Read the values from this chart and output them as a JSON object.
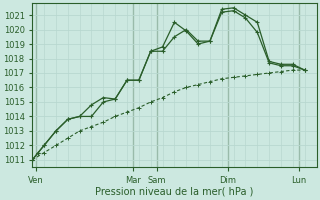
{
  "xlabel": "Pression niveau de la mer( hPa )",
  "bg_color": "#cce8e0",
  "grid_color_minor": "#b8d8d0",
  "grid_color_major_x": "#99bbaa",
  "line_color": "#2a5e2a",
  "ylim": [
    1010.5,
    1021.8
  ],
  "yticks": [
    1011,
    1012,
    1013,
    1014,
    1015,
    1016,
    1017,
    1018,
    1019,
    1020,
    1021
  ],
  "xlim": [
    0,
    24
  ],
  "day_labels": [
    "Ven",
    "Mar",
    "Sam",
    "Dim",
    "Lun"
  ],
  "day_positions": [
    0.3,
    8.5,
    10.5,
    16.5,
    22.5
  ],
  "major_vlines": [
    0.3,
    8.5,
    10.5,
    16.5,
    22.5
  ],
  "series1": {
    "x": [
      0,
      0.5,
      1,
      2,
      3,
      4,
      5,
      6,
      7,
      8,
      9,
      10,
      11,
      12,
      13,
      14,
      15,
      16,
      17,
      18,
      19,
      20,
      21,
      22,
      23
    ],
    "y": [
      1011.0,
      1011.5,
      1012.0,
      1013.0,
      1013.8,
      1014.0,
      1014.8,
      1015.3,
      1015.2,
      1016.5,
      1016.5,
      1018.5,
      1018.8,
      1020.5,
      1019.9,
      1019.0,
      1019.2,
      1021.4,
      1021.5,
      1021.0,
      1020.5,
      1017.8,
      1017.6,
      1017.6,
      1017.2
    ]
  },
  "series2": {
    "x": [
      0,
      0.5,
      1,
      2,
      3,
      4,
      5,
      6,
      7,
      8,
      9,
      10,
      11,
      12,
      13,
      14,
      15,
      16,
      17,
      18,
      19,
      20,
      21,
      22,
      23
    ],
    "y": [
      1011.0,
      1011.5,
      1012.0,
      1013.0,
      1013.8,
      1014.0,
      1014.0,
      1015.0,
      1015.2,
      1016.5,
      1016.5,
      1018.5,
      1018.5,
      1019.5,
      1020.0,
      1019.2,
      1019.2,
      1021.2,
      1021.3,
      1020.8,
      1019.8,
      1017.7,
      1017.5,
      1017.5,
      1017.2
    ]
  },
  "series3": {
    "x": [
      0,
      1,
      2,
      3,
      4,
      5,
      6,
      7,
      8,
      9,
      10,
      11,
      12,
      13,
      14,
      15,
      16,
      17,
      18,
      19,
      20,
      21,
      22,
      23
    ],
    "y": [
      1011.0,
      1011.5,
      1012.0,
      1012.5,
      1013.0,
      1013.3,
      1013.6,
      1014.0,
      1014.3,
      1014.6,
      1015.0,
      1015.3,
      1015.7,
      1016.0,
      1016.2,
      1016.4,
      1016.6,
      1016.7,
      1016.8,
      1016.9,
      1017.0,
      1017.1,
      1017.2,
      1017.2
    ]
  }
}
